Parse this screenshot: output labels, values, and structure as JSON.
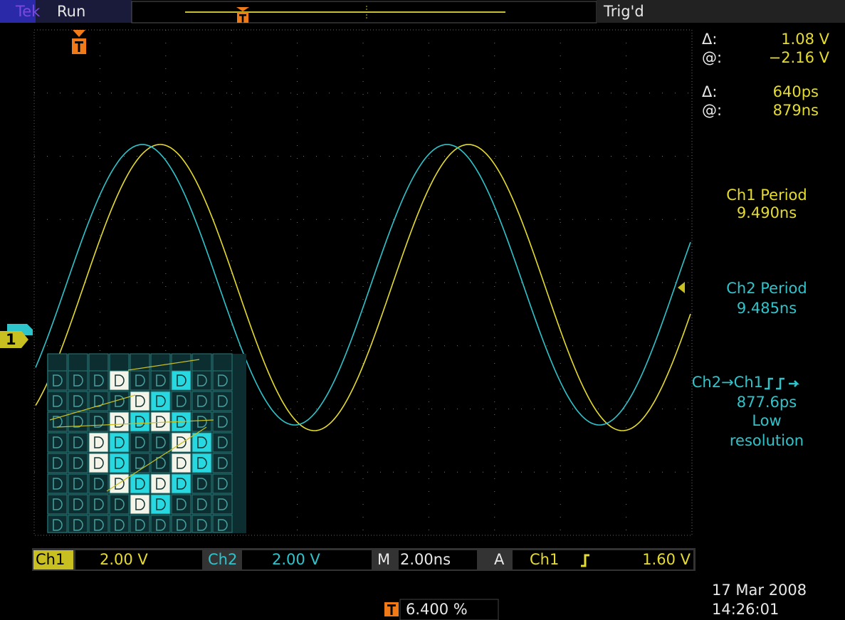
{
  "header": {
    "brand": "Tek",
    "state": "Run",
    "trigger_status": "Trig'd"
  },
  "cursors": [
    {
      "label": "Δ:",
      "value": "1.08 V"
    },
    {
      "label": "@:",
      "value": "−2.16 V"
    },
    {
      "label": "Δ:",
      "value": "640ps"
    },
    {
      "label": "@:",
      "value": "879ns"
    }
  ],
  "measurements": [
    {
      "name": "Ch1 Period",
      "value": "9.490ns"
    },
    {
      "name": "Ch2 Period",
      "value": "9.485ns"
    },
    {
      "name": "Ch2→Ch1",
      "value": "877.6ps",
      "note": [
        "Low",
        "resolution"
      ]
    }
  ],
  "channel_marker": "1",
  "footer": {
    "ch1": "Ch1",
    "ch1_scale": "2.00 V",
    "ch2": "Ch2",
    "ch2_scale": "2.00 V",
    "timebase_label": "M",
    "timebase": "2.00ns",
    "trigger_label": "A",
    "trigger_source": "Ch1",
    "trigger_level": "1.60 V",
    "trigger_position": "6.400 %",
    "date": "17 Mar 2008",
    "time": "14:26:01"
  }
}
